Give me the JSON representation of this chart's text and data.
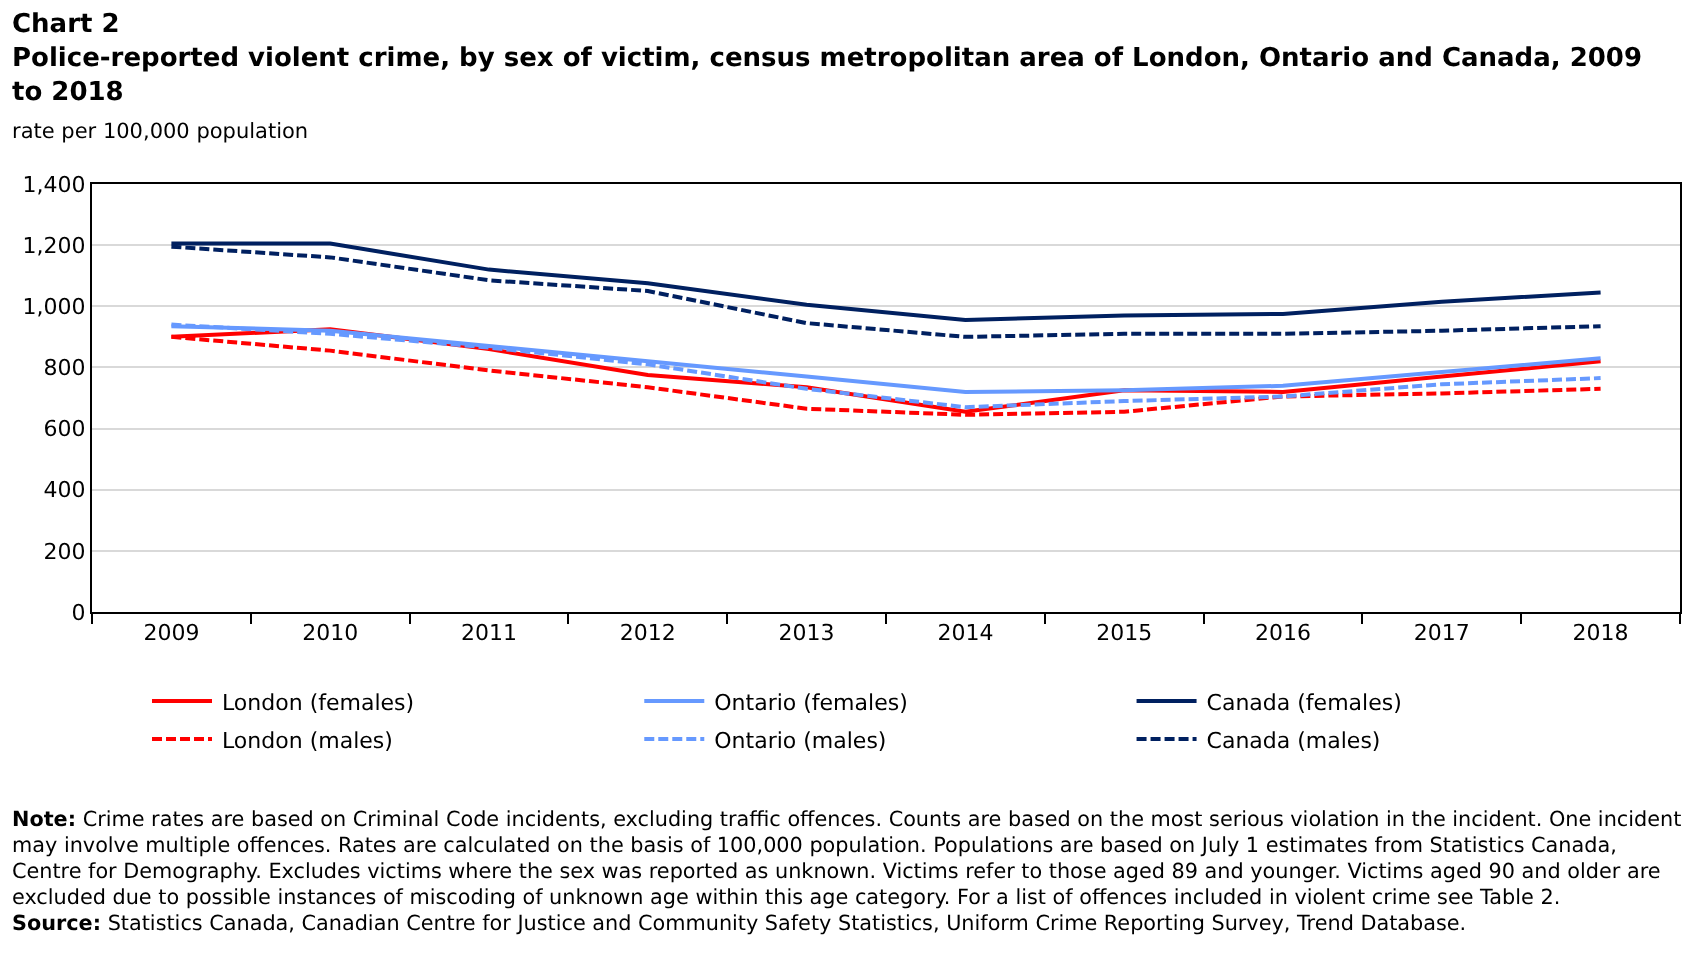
{
  "chart_data": {
    "type": "line",
    "title": "Chart 2",
    "subtitle": "Police-reported violent crime, by sex of victim, census metropolitan area of London, Ontario and Canada, 2009 to 2018",
    "ylabel": "rate per 100,000 population",
    "categories": [
      "2009",
      "2010",
      "2011",
      "2012",
      "2013",
      "2014",
      "2015",
      "2016",
      "2017",
      "2018"
    ],
    "series": [
      {
        "name": "London (females)",
        "color": "#ff0000",
        "line_style": "solid",
        "values": [
          900,
          925,
          860,
          775,
          735,
          655,
          725,
          720,
          770,
          820
        ]
      },
      {
        "name": "Ontario (females)",
        "color": "#6699ff",
        "line_style": "solid",
        "values": [
          935,
          920,
          870,
          820,
          770,
          720,
          725,
          740,
          785,
          830
        ]
      },
      {
        "name": "Canada (females)",
        "color": "#002060",
        "line_style": "solid",
        "values": [
          1205,
          1205,
          1120,
          1075,
          1005,
          955,
          970,
          975,
          1015,
          1045
        ]
      },
      {
        "name": "London (males)",
        "color": "#ff0000",
        "line_style": "dashed",
        "values": [
          900,
          855,
          790,
          735,
          665,
          645,
          655,
          705,
          715,
          730
        ]
      },
      {
        "name": "Ontario (males)",
        "color": "#6699ff",
        "line_style": "dashed",
        "values": [
          940,
          910,
          865,
          810,
          730,
          670,
          690,
          705,
          745,
          765
        ]
      },
      {
        "name": "Canada (males)",
        "color": "#002060",
        "line_style": "dashed",
        "values": [
          1195,
          1160,
          1085,
          1050,
          945,
          900,
          910,
          910,
          920,
          935
        ]
      }
    ],
    "ylim": [
      0,
      1400
    ],
    "yticks": [
      {
        "value": 0,
        "label": "0"
      },
      {
        "value": 200,
        "label": "200"
      },
      {
        "value": 400,
        "label": "400"
      },
      {
        "value": 600,
        "label": "600"
      },
      {
        "value": 800,
        "label": "800"
      },
      {
        "value": 1000,
        "label": "1,000"
      },
      {
        "value": 1200,
        "label": "1,200"
      },
      {
        "value": 1400,
        "label": "1,400"
      }
    ],
    "grid": "y",
    "legend": "bottom",
    "marker": "none",
    "annotations": [
      "Note: Crime rates are based on Criminal Code incidents, excluding traffic offences. Counts are based on the most serious violation in the incident. One incident may involve multiple offences. Rates are calculated on the basis of 100,000 population. Populations are based on July 1 estimates from Statistics Canada, Centre for Demography. Excludes victims where the sex was reported as unknown. Victims refer to those aged 89 and younger. Victims aged 90 and older are excluded due to possible instances of miscoding of unknown age within this age category. For a list of offences included in violent crime see Table 2.",
      "Source: Statistics Canada, Canadian Centre for Justice and Community Safety Statistics, Uniform Crime Reporting Survey, Trend Database."
    ]
  }
}
